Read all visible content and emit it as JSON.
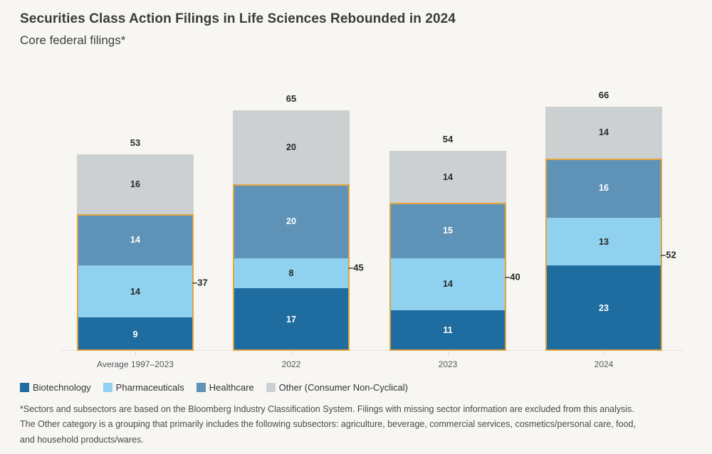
{
  "title": "Securities Class Action Filings in Life Sciences Rebounded in 2024",
  "subtitle": "Core federal filings*",
  "colors": {
    "background": "#f7f6f3",
    "outline": "#e2a33d",
    "axis_line": "#e6e4e0",
    "total_label": "#26282a",
    "category_label": "#54565a"
  },
  "chart_data": {
    "type": "bar",
    "stacked": true,
    "grid": false,
    "legend_position": "bottom",
    "categories": [
      "Average 1997–2023",
      "2022",
      "2023",
      "2024"
    ],
    "series": [
      {
        "name": "Biotechnology",
        "color": "#1f6da0",
        "label_color": "#ffffff",
        "values": [
          9,
          17,
          11,
          23
        ]
      },
      {
        "name": "Pharmaceuticals",
        "color": "#8fd1ee",
        "label_color": "#26282a",
        "values": [
          14,
          8,
          14,
          13
        ]
      },
      {
        "name": "Healthcare",
        "color": "#5e93b7",
        "label_color": "#ffffff",
        "values": [
          14,
          20,
          15,
          16
        ]
      },
      {
        "name": "Other (Consumer Non-Cyclical)",
        "color": "#cdd0d1",
        "label_color": "#26282a",
        "values": [
          16,
          20,
          14,
          14
        ]
      }
    ],
    "totals": [
      53,
      65,
      54,
      66
    ],
    "life_sciences_subtotals": [
      37,
      45,
      40,
      52
    ],
    "annotations": [
      "–37",
      "–45",
      "–40",
      "–52"
    ],
    "ylim": [
      0,
      70
    ]
  },
  "footnote_lines": {
    "line1": "*Sectors and subsectors are based on the Bloomberg Industry Classification System. Filings with missing sector information are excluded from this analysis.",
    "line2": "The Other category is a grouping that primarily includes the following subsectors: agriculture, beverage, commercial services, cosmetics/personal care, food,",
    "line3": "and household products/wares."
  }
}
